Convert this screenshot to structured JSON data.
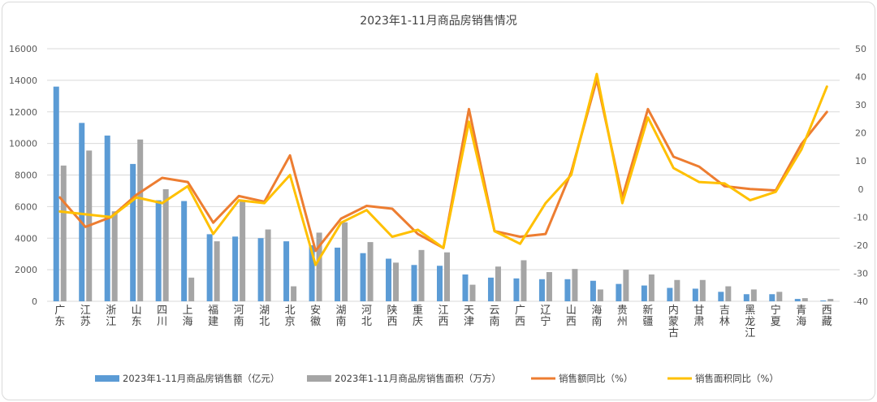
{
  "chart_data": {
    "type": "bar",
    "title": "2023年1-11月商品房销售情况",
    "categories": [
      "广东",
      "江苏",
      "浙江",
      "山东",
      "四川",
      "上海",
      "福建",
      "河南",
      "湖北",
      "北京",
      "安徽",
      "湖南",
      "河北",
      "陕西",
      "重庆",
      "江西",
      "天津",
      "云南",
      "广西",
      "辽宁",
      "山西",
      "海南",
      "贵州",
      "新疆",
      "内蒙古",
      "甘肃",
      "吉林",
      "黑龙江",
      "宁夏",
      "青海",
      "西藏"
    ],
    "ylim": [
      0,
      16000
    ],
    "yticks": [
      "0",
      "2000",
      "4000",
      "6000",
      "8000",
      "10000",
      "12000",
      "14000",
      "16000"
    ],
    "y2lim": [
      -40,
      50
    ],
    "y2ticks": [
      "-40",
      "-30",
      "-20",
      "-10",
      "0",
      "10",
      "20",
      "30",
      "40",
      "50"
    ],
    "legend_position": "bottom",
    "grid": true,
    "series": [
      {
        "name": "2023年1-11月商品房销售额（亿元）",
        "kind": "bar",
        "axis": "left",
        "color": "#5b9bd5",
        "values": [
          13600,
          11300,
          10500,
          8700,
          6400,
          6350,
          4250,
          4100,
          4000,
          3800,
          3550,
          3400,
          3050,
          2700,
          2300,
          2250,
          1700,
          1500,
          1450,
          1400,
          1400,
          1300,
          1100,
          1000,
          850,
          800,
          600,
          450,
          450,
          150,
          50
        ]
      },
      {
        "name": "2023年1-11月商品房销售面积（万方）",
        "kind": "bar",
        "axis": "left",
        "color": "#a5a5a5",
        "values": [
          8600,
          9550,
          5700,
          10250,
          7100,
          1500,
          3800,
          6350,
          4550,
          950,
          4350,
          5000,
          3750,
          2450,
          3250,
          3100,
          1050,
          2200,
          2600,
          1850,
          2050,
          750,
          2000,
          1700,
          1350,
          1350,
          950,
          750,
          600,
          200,
          150
        ]
      },
      {
        "name": "销售额同比（%）",
        "kind": "line",
        "axis": "right",
        "color": "#ed7d31",
        "values": [
          -3,
          -13.5,
          -10,
          -2,
          4,
          2.5,
          -12,
          -2.5,
          -4.5,
          12,
          -22,
          -10.5,
          -6,
          -7,
          -16,
          -21,
          28.5,
          -15,
          -17,
          -16,
          6,
          39,
          -3,
          28.5,
          11.5,
          8,
          1,
          0,
          -0.5,
          16,
          27.5
        ]
      },
      {
        "name": "销售面积同比（%）",
        "kind": "line",
        "axis": "right",
        "color": "#ffc000",
        "values": [
          -8,
          -9,
          -10,
          -3,
          -5,
          1,
          -16,
          -4,
          -5,
          5,
          -27,
          -12,
          -7.5,
          -17,
          -14.5,
          -21,
          24,
          -15,
          -19.5,
          -5,
          5,
          41,
          -5,
          25.5,
          7.5,
          2.5,
          2,
          -4,
          -1,
          14,
          36.5
        ]
      }
    ]
  }
}
